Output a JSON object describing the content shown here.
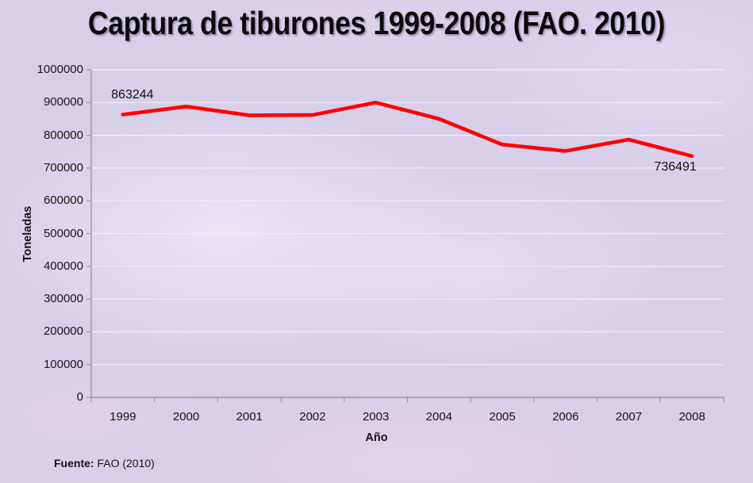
{
  "title": "Captura de tiburones 1999-2008 (FAO. 2010)",
  "source": {
    "label": "Fuente:",
    "text": " FAO (2010)"
  },
  "colors": {
    "background": "#d7ceea",
    "line": "#fd0202",
    "axis": "#9b93ab",
    "grid": "#f2edf9",
    "title_text": "#0a0a0a"
  },
  "chart_data": {
    "type": "line",
    "title": "Captura de tiburones 1999-2008 (FAO. 2010)",
    "xlabel": "Año",
    "ylabel": "Toneladas",
    "categories": [
      "1999",
      "2000",
      "2001",
      "2002",
      "2003",
      "2004",
      "2005",
      "2006",
      "2007",
      "2008"
    ],
    "series": [
      {
        "name": "Captura de tiburones",
        "color": "#fd0202",
        "values": [
          863244,
          888000,
          861000,
          862000,
          900000,
          850000,
          772000,
          752000,
          787000,
          736491
        ]
      }
    ],
    "ylim": [
      0,
      1000000
    ],
    "y_ticks": [
      0,
      100000,
      200000,
      300000,
      400000,
      500000,
      600000,
      700000,
      800000,
      900000,
      1000000
    ],
    "grid": true,
    "legend": "none",
    "annotations": [
      {
        "index": 0,
        "text": "863244",
        "position": "above"
      },
      {
        "index": 9,
        "text": "736491",
        "position": "below"
      }
    ]
  }
}
